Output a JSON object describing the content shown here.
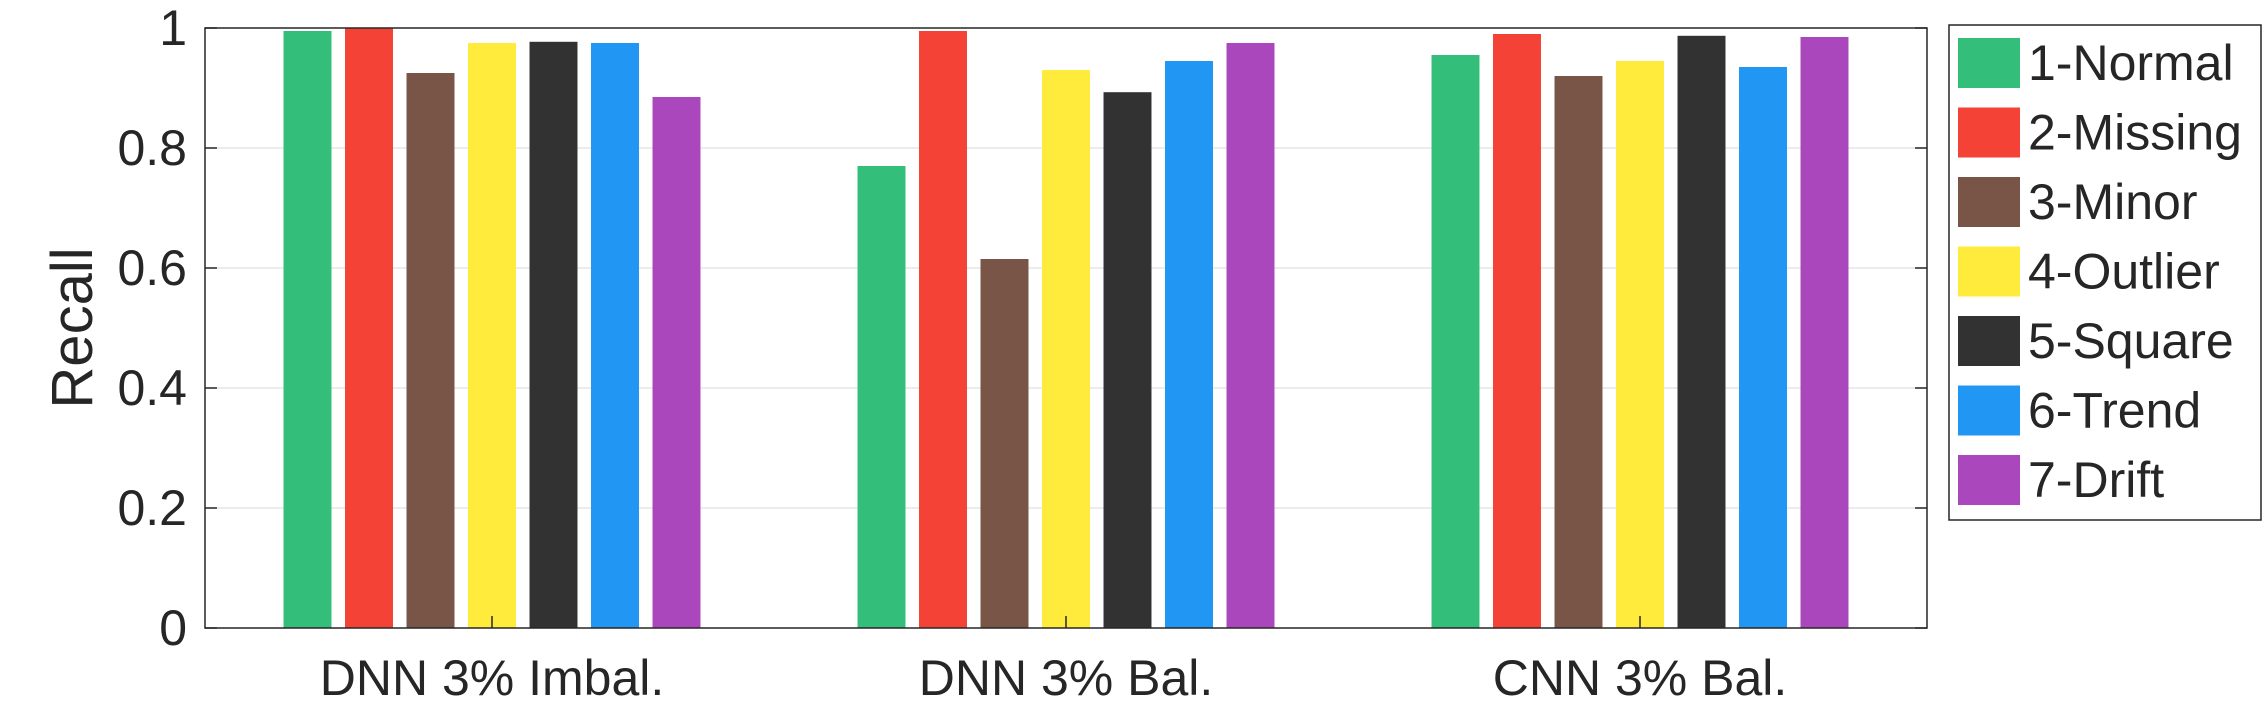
{
  "chart_data": {
    "type": "bar",
    "title": "",
    "xlabel": "",
    "ylabel": "Recall",
    "ylim": [
      0,
      1
    ],
    "yticks": [
      0,
      0.2,
      0.4,
      0.6,
      0.8,
      1
    ],
    "ytick_labels": [
      "0",
      "0.2",
      "0.4",
      "0.6",
      "0.8",
      "1"
    ],
    "grid": "horizontal",
    "legend_position": "right",
    "categories": [
      "DNN 3% Imbal.",
      "DNN 3% Bal.",
      "CNN 3% Bal."
    ],
    "series": [
      {
        "name": "1-Normal",
        "color": "#33bf79",
        "values": [
          0.995,
          0.77,
          0.955
        ]
      },
      {
        "name": "2-Missing",
        "color": "#f44336",
        "values": [
          1.0,
          0.995,
          0.99
        ]
      },
      {
        "name": "3-Minor",
        "color": "#795548",
        "values": [
          0.925,
          0.615,
          0.92
        ]
      },
      {
        "name": "4-Outlier",
        "color": "#ffeb3b",
        "values": [
          0.975,
          0.93,
          0.945
        ]
      },
      {
        "name": "5-Square",
        "color": "#323232",
        "values": [
          0.977,
          0.893,
          0.987
        ]
      },
      {
        "name": "6-Trend",
        "color": "#2196f3",
        "values": [
          0.975,
          0.945,
          0.935
        ]
      },
      {
        "name": "7-Drift",
        "color": "#ab47bc",
        "values": [
          0.885,
          0.975,
          0.985
        ]
      }
    ]
  }
}
